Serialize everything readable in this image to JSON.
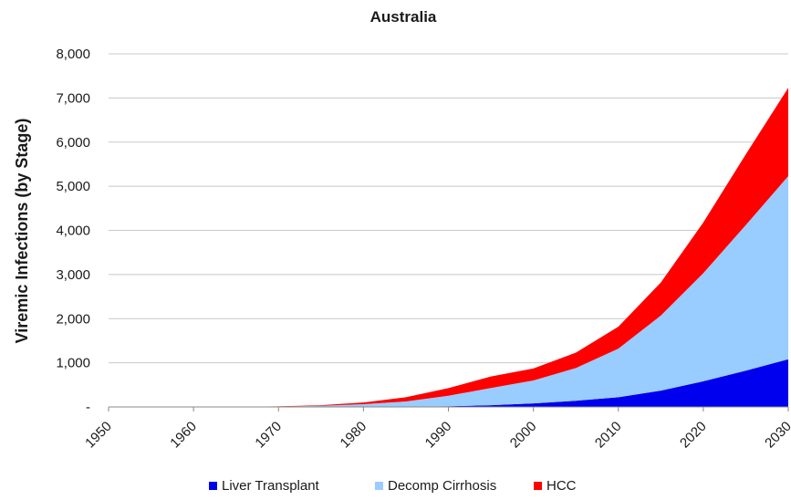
{
  "chart_data": {
    "type": "area",
    "stacked": true,
    "title": "Australia",
    "ylabel": "Viremic Infections (by Stage)",
    "xlabel": "",
    "xlim": [
      1950,
      2030
    ],
    "ylim": [
      0,
      8000
    ],
    "x_ticks": [
      "1950",
      "1960",
      "1970",
      "1980",
      "1990",
      "2000",
      "2010",
      "2020",
      "2030"
    ],
    "y_ticks": [
      "-",
      "1,000",
      "2,000",
      "3,000",
      "4,000",
      "5,000",
      "6,000",
      "7,000",
      "8,000"
    ],
    "grid": "horizontal",
    "legend_position": "bottom",
    "x": [
      1950,
      1955,
      1960,
      1965,
      1970,
      1975,
      1980,
      1985,
      1990,
      1995,
      2000,
      2005,
      2010,
      2015,
      2020,
      2025,
      2030
    ],
    "series": [
      {
        "name": "Liver Transplant",
        "color": "#0000ee",
        "values": [
          0,
          0,
          0,
          0,
          0,
          0,
          2,
          5,
          15,
          40,
          80,
          140,
          220,
          370,
          580,
          820,
          1080
        ]
      },
      {
        "name": "Decomp Cirrhosis",
        "color": "#99ccff",
        "values": [
          0,
          0,
          0,
          2,
          8,
          25,
          60,
          120,
          240,
          390,
          520,
          740,
          1100,
          1700,
          2450,
          3300,
          4150
        ]
      },
      {
        "name": "HCC",
        "color": "#ff0000",
        "values": [
          0,
          0,
          0,
          1,
          4,
          15,
          40,
          95,
          170,
          260,
          270,
          350,
          500,
          750,
          1150,
          1600,
          2000
        ]
      }
    ]
  }
}
